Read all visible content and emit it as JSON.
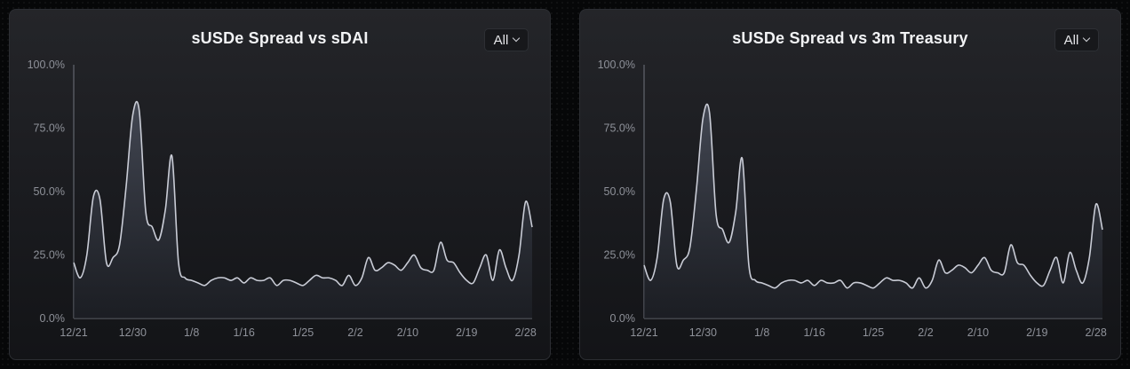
{
  "chart_data": [
    {
      "type": "area",
      "title": "sUSDe Spread vs sDAI",
      "range_label": "All",
      "ylim": [
        0,
        100
      ],
      "yticks": [
        "100.0%",
        "75.0%",
        "50.0%",
        "25.0%",
        "0.0%"
      ],
      "xticks": [
        "12/21",
        "12/30",
        "1/8",
        "1/16",
        "1/25",
        "2/2",
        "2/10",
        "2/19",
        "2/28"
      ],
      "x": [
        "12/21",
        "12/22",
        "12/23",
        "12/24",
        "12/25",
        "12/26",
        "12/27",
        "12/28",
        "12/29",
        "12/30",
        "12/31",
        "1/1",
        "1/2",
        "1/3",
        "1/4",
        "1/5",
        "1/6",
        "1/7",
        "1/8",
        "1/9",
        "1/10",
        "1/11",
        "1/12",
        "1/13",
        "1/14",
        "1/15",
        "1/16",
        "1/17",
        "1/18",
        "1/19",
        "1/20",
        "1/21",
        "1/22",
        "1/23",
        "1/24",
        "1/25",
        "1/26",
        "1/27",
        "1/28",
        "1/29",
        "1/30",
        "1/31",
        "2/1",
        "2/2",
        "2/3",
        "2/4",
        "2/5",
        "2/6",
        "2/7",
        "2/8",
        "2/9",
        "2/10",
        "2/11",
        "2/12",
        "2/13",
        "2/14",
        "2/15",
        "2/16",
        "2/17",
        "2/18",
        "2/19",
        "2/20",
        "2/21",
        "2/22",
        "2/23",
        "2/24",
        "2/25",
        "2/26",
        "2/27",
        "2/28",
        "2/29"
      ],
      "series": [
        {
          "values": [
            22,
            16,
            25,
            48,
            47,
            22,
            24,
            29,
            52,
            80,
            82,
            42,
            36,
            31,
            43,
            64,
            22,
            16,
            15,
            14,
            13,
            15,
            16,
            16,
            15,
            16,
            14,
            16,
            15,
            15,
            16,
            13,
            15,
            15,
            14,
            13,
            15,
            17,
            16,
            16,
            15,
            13,
            17,
            13,
            16,
            24,
            19,
            20,
            22,
            21,
            19,
            22,
            25,
            20,
            19,
            19,
            30,
            23,
            22,
            18,
            15,
            14,
            20,
            25,
            15,
            27,
            20,
            15,
            25,
            46,
            36
          ]
        }
      ]
    },
    {
      "type": "area",
      "title": "sUSDe Spread vs 3m Treasury",
      "range_label": "All",
      "ylim": [
        0,
        100
      ],
      "yticks": [
        "100.0%",
        "75.0%",
        "50.0%",
        "25.0%",
        "0.0%"
      ],
      "xticks": [
        "12/21",
        "12/30",
        "1/8",
        "1/16",
        "1/25",
        "2/2",
        "2/10",
        "2/19",
        "2/28"
      ],
      "x": [
        "12/21",
        "12/22",
        "12/23",
        "12/24",
        "12/25",
        "12/26",
        "12/27",
        "12/28",
        "12/29",
        "12/30",
        "12/31",
        "1/1",
        "1/2",
        "1/3",
        "1/4",
        "1/5",
        "1/6",
        "1/7",
        "1/8",
        "1/9",
        "1/10",
        "1/11",
        "1/12",
        "1/13",
        "1/14",
        "1/15",
        "1/16",
        "1/17",
        "1/18",
        "1/19",
        "1/20",
        "1/21",
        "1/22",
        "1/23",
        "1/24",
        "1/25",
        "1/26",
        "1/27",
        "1/28",
        "1/29",
        "1/30",
        "1/31",
        "2/1",
        "2/2",
        "2/3",
        "2/4",
        "2/5",
        "2/6",
        "2/7",
        "2/8",
        "2/9",
        "2/10",
        "2/11",
        "2/12",
        "2/13",
        "2/14",
        "2/15",
        "2/16",
        "2/17",
        "2/18",
        "2/19",
        "2/20",
        "2/21",
        "2/22",
        "2/23",
        "2/24",
        "2/25",
        "2/26",
        "2/27",
        "2/28",
        "2/29"
      ],
      "series": [
        {
          "values": [
            21,
            15,
            24,
            47,
            46,
            21,
            23,
            28,
            51,
            79,
            81,
            41,
            35,
            30,
            42,
            63,
            21,
            15,
            14,
            13,
            12,
            14,
            15,
            15,
            14,
            15,
            13,
            15,
            14,
            14,
            15,
            12,
            14,
            14,
            13,
            12,
            14,
            16,
            15,
            15,
            14,
            12,
            16,
            12,
            15,
            23,
            18,
            19,
            21,
            20,
            18,
            21,
            24,
            19,
            18,
            18,
            29,
            22,
            21,
            17,
            14,
            13,
            19,
            24,
            14,
            26,
            19,
            14,
            24,
            45,
            35
          ]
        }
      ]
    }
  ],
  "colors": {
    "line": "#c9ccd6",
    "area_top": "#4a4f5c",
    "area_bottom": "#20232a",
    "axis": "#6f737c",
    "tick_text": "#8e9199"
  }
}
